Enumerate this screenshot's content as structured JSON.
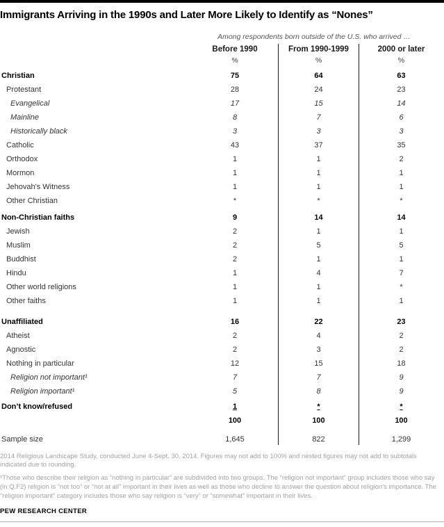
{
  "header": {
    "title": "Immigrants Arriving in the 1990s and Later More Likely to Identify as “Nones”",
    "subtitle": "Among respondents born outside of the U.S. who arrived …"
  },
  "colors": {
    "topbar": "#000000",
    "divider": "#1a1a1a",
    "note_gray": "#a3a3a3"
  },
  "chart_data": {
    "type": "table",
    "title": "Immigrants Arriving in the 1990s and Later More Likely to Identify as “Nones”",
    "subtitle": "Among respondents born outside of the U.S. who arrived …",
    "columns": [
      "Before 1990",
      "From 1990-1999",
      "2000 or later"
    ],
    "unit_row": [
      "%",
      "%",
      "%"
    ],
    "groups": [
      {
        "rows": [
          {
            "label": "Christian",
            "style": "section",
            "values": [
              "75",
              "64",
              "63"
            ]
          },
          {
            "label": "Protestant",
            "style": "item",
            "values": [
              "28",
              "24",
              "23"
            ]
          },
          {
            "label": "Evangelical",
            "style": "subitem",
            "values": [
              "17",
              "15",
              "14"
            ]
          },
          {
            "label": "Mainline",
            "style": "subitem",
            "values": [
              "8",
              "7",
              "6"
            ]
          },
          {
            "label": "Historically black",
            "style": "subitem",
            "values": [
              "3",
              "3",
              "3"
            ]
          },
          {
            "label": "Catholic",
            "style": "item",
            "values": [
              "43",
              "37",
              "35"
            ]
          },
          {
            "label": "Orthodox",
            "style": "item",
            "values": [
              "1",
              "1",
              "2"
            ]
          },
          {
            "label": "Mormon",
            "style": "item",
            "values": [
              "1",
              "1",
              "1"
            ]
          },
          {
            "label": "Jehovah's Witness",
            "style": "item",
            "values": [
              "1",
              "1",
              "1"
            ]
          },
          {
            "label": "Other Christian",
            "style": "item",
            "values": [
              "*",
              "*",
              "*"
            ]
          }
        ]
      },
      {
        "rows": [
          {
            "label": "Non-Christian faiths",
            "style": "section",
            "values": [
              "9",
              "14",
              "14"
            ]
          },
          {
            "label": "Jewish",
            "style": "item",
            "values": [
              "2",
              "1",
              "1"
            ]
          },
          {
            "label": "Muslim",
            "style": "item",
            "values": [
              "2",
              "5",
              "5"
            ]
          },
          {
            "label": "Buddhist",
            "style": "item",
            "values": [
              "2",
              "1",
              "1"
            ]
          },
          {
            "label": "Hindu",
            "style": "item",
            "values": [
              "1",
              "4",
              "7"
            ]
          },
          {
            "label": "Other world religions",
            "style": "item",
            "values": [
              "1",
              "1",
              "*"
            ]
          },
          {
            "label": "Other faiths",
            "style": "item",
            "values": [
              "1",
              "1",
              "1"
            ]
          }
        ]
      },
      {
        "rows": [
          {
            "label": "Unaffiliated",
            "style": "section",
            "values": [
              "16",
              "22",
              "23"
            ]
          },
          {
            "label": "Atheist",
            "style": "item",
            "values": [
              "2",
              "4",
              "2"
            ]
          },
          {
            "label": "Agnostic",
            "style": "item",
            "values": [
              "2",
              "3",
              "2"
            ]
          },
          {
            "label": "Nothing in particular",
            "style": "item",
            "values": [
              "12",
              "15",
              "18"
            ]
          },
          {
            "label": "Religion not important¹",
            "style": "subitem",
            "values": [
              "7",
              "7",
              "9"
            ]
          },
          {
            "label": "Religion important¹",
            "style": "subitem",
            "values": [
              "5",
              "8",
              "9"
            ]
          }
        ]
      },
      {
        "rows": [
          {
            "label": "Don’t know/refused",
            "style": "sum",
            "values": [
              "1",
              "*",
              "*"
            ]
          },
          {
            "label": "",
            "style": "total",
            "values": [
              "100",
              "100",
              "100"
            ]
          }
        ]
      },
      {
        "rows": [
          {
            "label": "Sample size",
            "style": "sample",
            "values": [
              "1,645",
              "822",
              "1,299"
            ]
          }
        ]
      }
    ]
  },
  "notes": {
    "source": "2014 Religious Landscape Study, conducted June 4-Sept. 30, 2014. Figures may not add to 100% and nested figures may not add to subtotals indicated due to rounding.",
    "footnote": "¹Those who describe their religion as “nothing in particular” are subdivided into two groups. The “religion not important” group includes those who say (in Q.F2) religion is “not too” or “not at all” important in their lives as well as those who decline to answer the question about religion’s importance. The “religion important” category includes those who say religion is “very” or “somewhat” important in their lives.",
    "brand": "PEW RESEARCH CENTER"
  }
}
